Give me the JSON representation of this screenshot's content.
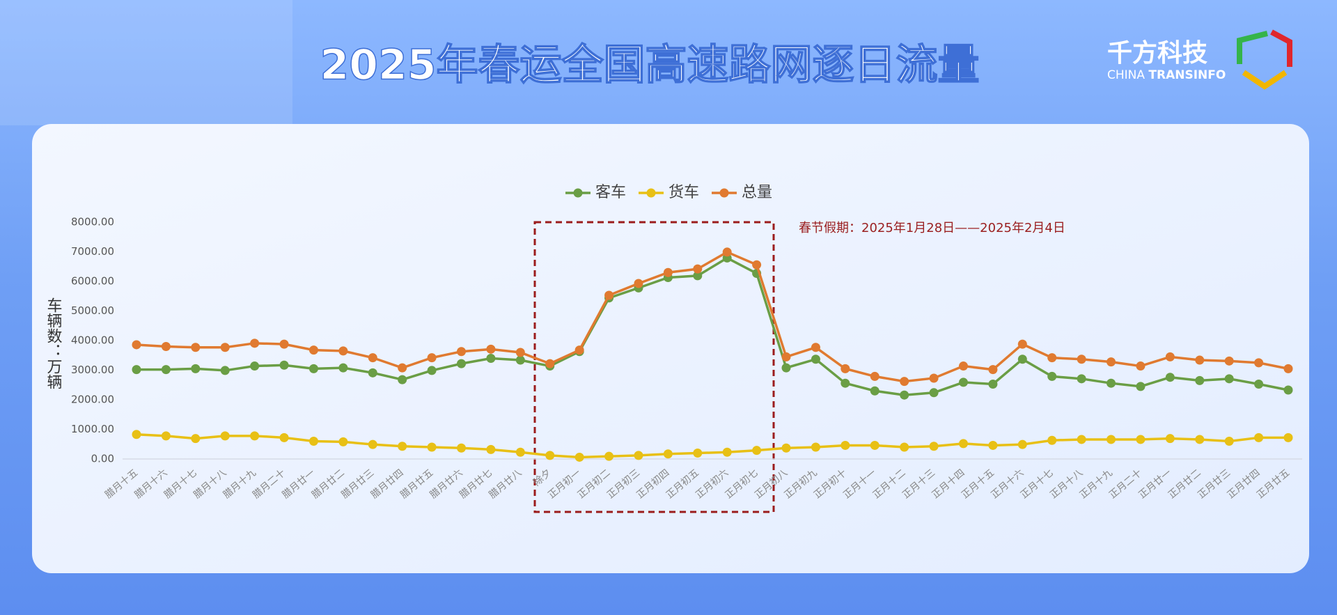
{
  "header": {
    "logo_cn": "千方科技",
    "logo_en_1": "CHINA",
    "logo_en_2": "TRANSINFO"
  },
  "chart_data": {
    "type": "line",
    "title": "2025年春运全国高速路网逐日流量",
    "y_label": "车辆数：万辆",
    "annotation": "春节假期：2025年1月28日——2025年2月4日",
    "categories": [
      "腊月十五",
      "腊月十六",
      "腊月十七",
      "腊月十八",
      "腊月十九",
      "腊月二十",
      "腊月廿一",
      "腊月廿二",
      "腊月廿三",
      "腊月廿四",
      "腊月廿五",
      "腊月廿六",
      "腊月廿七",
      "腊月廿八",
      "除夕",
      "正月初一",
      "正月初二",
      "正月初三",
      "正月初四",
      "正月初五",
      "正月初六",
      "正月初七",
      "正月初八",
      "正月初九",
      "正月初十",
      "正月十一",
      "正月十二",
      "正月十三",
      "正月十四",
      "正月十五",
      "正月十六",
      "正月十七",
      "正月十八",
      "正月十九",
      "正月二十",
      "正月廿一",
      "正月廿二",
      "正月廿三",
      "正月廿四",
      "正月廿五"
    ],
    "series": [
      {
        "name": "客车",
        "color": "#6a9e45",
        "values": [
          3020,
          3020,
          3050,
          2990,
          3140,
          3170,
          3050,
          3080,
          2910,
          2680,
          2990,
          3220,
          3400,
          3340,
          3140,
          3630,
          5440,
          5780,
          6130,
          6190,
          6790,
          6270,
          3080,
          3370,
          2560,
          2300,
          2160,
          2240,
          2590,
          2530,
          3370,
          2790,
          2710,
          2560,
          2450,
          2760,
          2650,
          2710,
          2530,
          2330
        ]
      },
      {
        "name": "货车",
        "color": "#e8c015",
        "values": [
          830,
          780,
          690,
          780,
          780,
          720,
          600,
          580,
          490,
          430,
          400,
          370,
          320,
          230,
          120,
          60,
          90,
          120,
          170,
          200,
          230,
          290,
          370,
          400,
          460,
          460,
          400,
          430,
          520,
          460,
          490,
          630,
          660,
          660,
          660,
          690,
          660,
          600,
          720,
          720
        ]
      },
      {
        "name": "总量",
        "color": "#e07a30",
        "values": [
          3860,
          3800,
          3770,
          3770,
          3910,
          3880,
          3680,
          3650,
          3420,
          3080,
          3420,
          3630,
          3710,
          3600,
          3220,
          3680,
          5530,
          5930,
          6300,
          6420,
          6990,
          6560,
          3450,
          3770,
          3050,
          2790,
          2620,
          2730,
          3140,
          3020,
          3880,
          3420,
          3370,
          3280,
          3140,
          3450,
          3340,
          3310,
          3250,
          3050
        ]
      }
    ],
    "ylim": [
      0,
      8000
    ],
    "yticks": [
      {
        "value": 0,
        "label": "0.00"
      },
      {
        "value": 1000,
        "label": "1000.00"
      },
      {
        "value": 2000,
        "label": "2000.00"
      },
      {
        "value": 3000,
        "label": "3000.00"
      },
      {
        "value": 4000,
        "label": "4000.00"
      },
      {
        "value": 5000,
        "label": "5000.00"
      },
      {
        "value": 6000,
        "label": "6000.00"
      },
      {
        "value": 7000,
        "label": "7000.00"
      },
      {
        "value": 8000,
        "label": "8000.00"
      }
    ],
    "grid": false,
    "legend": "top"
  }
}
